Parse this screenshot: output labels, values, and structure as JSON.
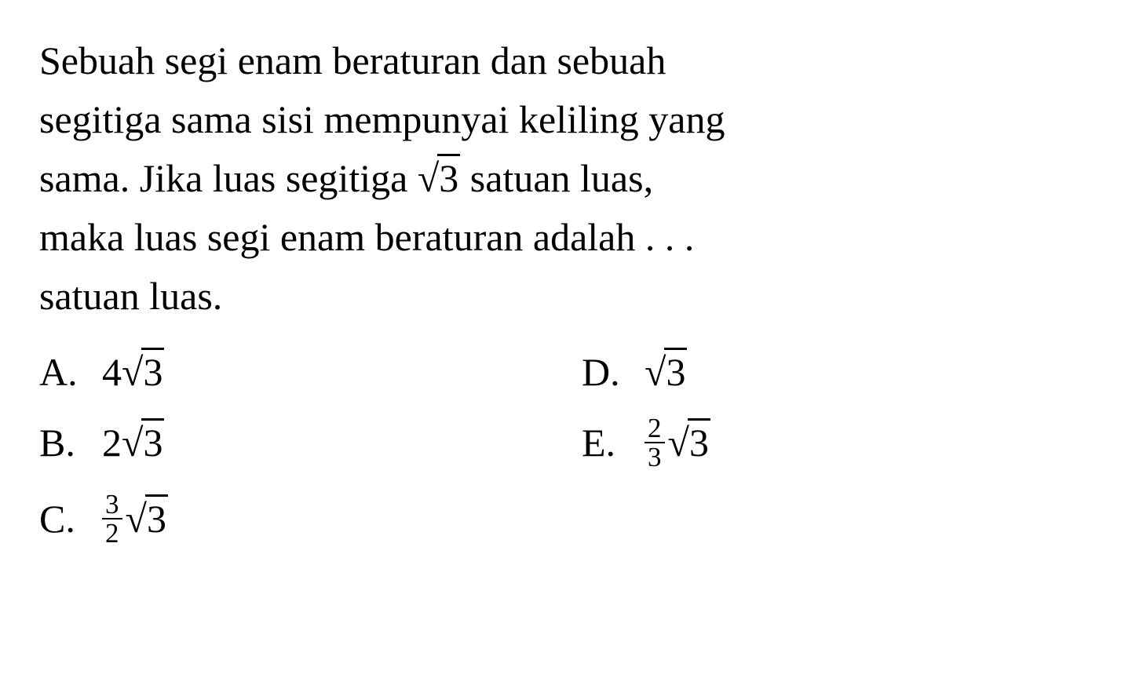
{
  "question": {
    "line1": "Sebuah segi enam beraturan dan sebuah",
    "line2": "segitiga sama sisi mempunyai keliling yang",
    "line3_before": "sama. Jika luas segitiga ",
    "line3_sqrt": "3",
    "line3_after": " satuan luas,",
    "line4": "maka luas segi enam beraturan adalah . . .",
    "line5": "satuan luas."
  },
  "options": {
    "a": {
      "label": "A.",
      "coeff": "4",
      "sqrt": "3"
    },
    "b": {
      "label": "B.",
      "coeff": "2",
      "sqrt": "3"
    },
    "c": {
      "label": "C.",
      "frac_num": "3",
      "frac_den": "2",
      "sqrt": "3"
    },
    "d": {
      "label": "D.",
      "sqrt": "3"
    },
    "e": {
      "label": "E.",
      "frac_num": "2",
      "frac_den": "3",
      "sqrt": "3"
    }
  },
  "styling": {
    "font_family": "Times New Roman",
    "text_color": "#000000",
    "background_color": "#ffffff",
    "question_fontsize": 50,
    "option_fontsize": 50
  }
}
